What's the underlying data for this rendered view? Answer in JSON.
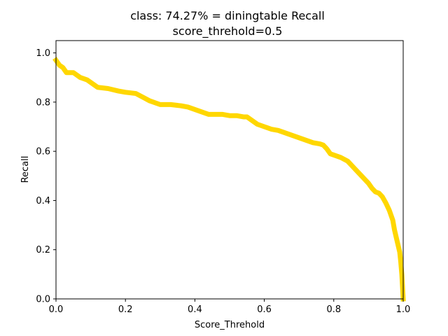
{
  "chart_data": {
    "type": "line",
    "title_line1": "class: 74.27% = diningtable Recall",
    "title_line2": "score_threhold=0.5",
    "xlabel": "Score_Threhold",
    "ylabel": "Recall",
    "xlim": [
      0.0,
      1.0
    ],
    "ylim": [
      0.0,
      1.05
    ],
    "xticks": [
      "0.0",
      "0.2",
      "0.4",
      "0.6",
      "0.8",
      "1.0"
    ],
    "yticks": [
      "0.0",
      "0.2",
      "0.4",
      "0.6",
      "0.8",
      "1.0"
    ],
    "grid": false,
    "line_color": "#ffd700",
    "series": [
      {
        "x": [
          0.0,
          0.005,
          0.01,
          0.02,
          0.03,
          0.05,
          0.07,
          0.09,
          0.1,
          0.12,
          0.15,
          0.18,
          0.2,
          0.23,
          0.25,
          0.27,
          0.3,
          0.33,
          0.36,
          0.38,
          0.4,
          0.42,
          0.44,
          0.46,
          0.48,
          0.5,
          0.52,
          0.54,
          0.55,
          0.56,
          0.57,
          0.58,
          0.6,
          0.62,
          0.64,
          0.66,
          0.68,
          0.7,
          0.72,
          0.74,
          0.76,
          0.77,
          0.78,
          0.79,
          0.8,
          0.82,
          0.84,
          0.86,
          0.88,
          0.9,
          0.91,
          0.92,
          0.93,
          0.94,
          0.95,
          0.96,
          0.97,
          0.975,
          0.98,
          0.985,
          0.99,
          0.993,
          0.996,
          0.998,
          1.0
        ],
        "y": [
          0.97,
          0.96,
          0.95,
          0.94,
          0.92,
          0.92,
          0.9,
          0.89,
          0.88,
          0.86,
          0.855,
          0.845,
          0.84,
          0.835,
          0.82,
          0.805,
          0.79,
          0.79,
          0.785,
          0.78,
          0.77,
          0.76,
          0.75,
          0.75,
          0.75,
          0.745,
          0.745,
          0.74,
          0.74,
          0.73,
          0.72,
          0.71,
          0.7,
          0.69,
          0.685,
          0.675,
          0.665,
          0.655,
          0.645,
          0.635,
          0.63,
          0.625,
          0.61,
          0.59,
          0.585,
          0.575,
          0.56,
          0.53,
          0.5,
          0.47,
          0.45,
          0.435,
          0.43,
          0.415,
          0.39,
          0.36,
          0.32,
          0.28,
          0.25,
          0.22,
          0.19,
          0.15,
          0.1,
          0.05,
          0.0
        ]
      }
    ]
  }
}
